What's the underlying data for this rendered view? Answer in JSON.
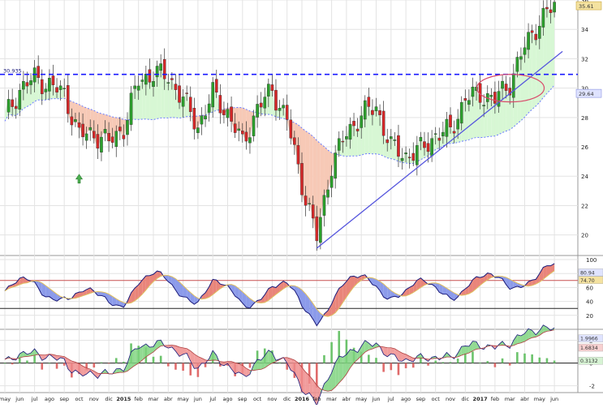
{
  "chart_data": {
    "type": "candlestick",
    "price_panel": {
      "ylim": [
        18.6,
        36.0
      ],
      "y_ticks": [
        20,
        22,
        24,
        26,
        28,
        30,
        32,
        34,
        36
      ],
      "y_tick_labels": [
        "20",
        "22",
        "24",
        "26",
        "28",
        "30",
        "32",
        "34",
        "36"
      ],
      "resistance_line": {
        "value": 30.935,
        "label": "30.935",
        "color": "#1a1aff",
        "style": "dashed"
      },
      "last_price": {
        "value": 35.61,
        "label": "35.61"
      },
      "moving_average_last": {
        "value": 29.64,
        "label": "29.64"
      },
      "trendline": {
        "from": [
          "2016-02",
          19.1
        ],
        "to": [
          "2017-06",
          32.5
        ],
        "color": "#5555dd"
      },
      "highlight_ellipse_period": [
        "2017-01",
        "2017-04"
      ],
      "buy_arrow_month": "2014-10",
      "monthly_closes": [
        {
          "m": "2014-05",
          "v": 28.0
        },
        {
          "m": "2014-06",
          "v": 29.9
        },
        {
          "m": "2014-07",
          "v": 30.7
        },
        {
          "m": "2014-08",
          "v": 30.2
        },
        {
          "m": "2014-09",
          "v": 29.6
        },
        {
          "m": "2014-10",
          "v": 26.8
        },
        {
          "m": "2014-11",
          "v": 26.9
        },
        {
          "m": "2014-12",
          "v": 26.3
        },
        {
          "m": "2015-01",
          "v": 27.3
        },
        {
          "m": "2015-02",
          "v": 30.5
        },
        {
          "m": "2015-03",
          "v": 31.0
        },
        {
          "m": "2015-04",
          "v": 30.8
        },
        {
          "m": "2015-05",
          "v": 29.2
        },
        {
          "m": "2015-06",
          "v": 27.4
        },
        {
          "m": "2015-07",
          "v": 29.6
        },
        {
          "m": "2015-08",
          "v": 28.3
        },
        {
          "m": "2015-09",
          "v": 26.2
        },
        {
          "m": "2015-10",
          "v": 28.6
        },
        {
          "m": "2015-11",
          "v": 29.9
        },
        {
          "m": "2015-12",
          "v": 27.8
        },
        {
          "m": "2016-01",
          "v": 23.5
        },
        {
          "m": "2016-02",
          "v": 19.8
        },
        {
          "m": "2016-03",
          "v": 24.8
        },
        {
          "m": "2016-04",
          "v": 26.9
        },
        {
          "m": "2016-05",
          "v": 28.2
        },
        {
          "m": "2016-06",
          "v": 28.7
        },
        {
          "m": "2016-07",
          "v": 26.0
        },
        {
          "m": "2016-08",
          "v": 25.4
        },
        {
          "m": "2016-09",
          "v": 25.8
        },
        {
          "m": "2016-10",
          "v": 26.8
        },
        {
          "m": "2016-11",
          "v": 27.1
        },
        {
          "m": "2016-12",
          "v": 29.3
        },
        {
          "m": "2017-01",
          "v": 29.6
        },
        {
          "m": "2017-02",
          "v": 29.2
        },
        {
          "m": "2017-03",
          "v": 30.4
        },
        {
          "m": "2017-04",
          "v": 32.8
        },
        {
          "m": "2017-05",
          "v": 34.6
        },
        {
          "m": "2017-06",
          "v": 35.6
        }
      ]
    },
    "oscillator_panel": {
      "ylim": [
        0,
        100
      ],
      "y_ticks": [
        20,
        40,
        60,
        80,
        100
      ],
      "y_tick_labels": [
        "20",
        "40",
        "60",
        "80",
        "100"
      ],
      "upper_line": 70,
      "lower_line": 30,
      "last_values": [
        "80.94",
        "74.70"
      ]
    },
    "macd_panel": {
      "ylim": [
        -2.6,
        2.4
      ],
      "y_ticks": [
        -2,
        0,
        2
      ],
      "y_tick_labels": [
        "-2",
        "0",
        "2"
      ],
      "last_values": [
        "1.9966",
        "1.6834",
        "0.3132"
      ]
    },
    "x_axis": {
      "labels": [
        {
          "t": "may",
          "m": "2014-05"
        },
        {
          "t": "jun",
          "m": "2014-06"
        },
        {
          "t": "jul",
          "m": "2014-07"
        },
        {
          "t": "ago",
          "m": "2014-08"
        },
        {
          "t": "sep",
          "m": "2014-09"
        },
        {
          "t": "oct",
          "m": "2014-10"
        },
        {
          "t": "nov",
          "m": "2014-11"
        },
        {
          "t": "dic",
          "m": "2014-12"
        },
        {
          "t": "2015",
          "m": "2015-01",
          "bold": true
        },
        {
          "t": "feb",
          "m": "2015-02"
        },
        {
          "t": "mar",
          "m": "2015-03"
        },
        {
          "t": "abr",
          "m": "2015-04"
        },
        {
          "t": "may",
          "m": "2015-05"
        },
        {
          "t": "jun",
          "m": "2015-06"
        },
        {
          "t": "jul",
          "m": "2015-07"
        },
        {
          "t": "ago",
          "m": "2015-08"
        },
        {
          "t": "sep",
          "m": "2015-09"
        },
        {
          "t": "oct",
          "m": "2015-10"
        },
        {
          "t": "nov",
          "m": "2015-11"
        },
        {
          "t": "dic",
          "m": "2015-12"
        },
        {
          "t": "2016",
          "m": "2016-01",
          "bold": true
        },
        {
          "t": "feb",
          "m": "2016-02"
        },
        {
          "t": "mar",
          "m": "2016-03"
        },
        {
          "t": "abr",
          "m": "2016-04"
        },
        {
          "t": "may",
          "m": "2016-05"
        },
        {
          "t": "jun",
          "m": "2016-06"
        },
        {
          "t": "jul",
          "m": "2016-07"
        },
        {
          "t": "ago",
          "m": "2016-08"
        },
        {
          "t": "sep",
          "m": "2016-09"
        },
        {
          "t": "oct",
          "m": "2016-10"
        },
        {
          "t": "nov",
          "m": "2016-11"
        },
        {
          "t": "dic",
          "m": "2016-12"
        },
        {
          "t": "2017",
          "m": "2017-01",
          "bold": true
        },
        {
          "t": "feb",
          "m": "2017-02"
        },
        {
          "t": "mar",
          "m": "2017-03"
        },
        {
          "t": "abr",
          "m": "2017-04"
        },
        {
          "t": "may",
          "m": "2017-05"
        },
        {
          "t": "jun",
          "m": "2017-06"
        }
      ]
    },
    "colors": {
      "bull": "#2ca02c",
      "bear": "#d62728",
      "grid": "#e3e3e3",
      "bull_fill": "#d7f7d4",
      "bear_fill": "#f7c9b6",
      "ma": "#6b7bff",
      "osc_line": "#1a1a7a",
      "signal": "#e0c060",
      "macd_pos": "#6cc36c",
      "macd_neg": "#e06b6b"
    }
  }
}
